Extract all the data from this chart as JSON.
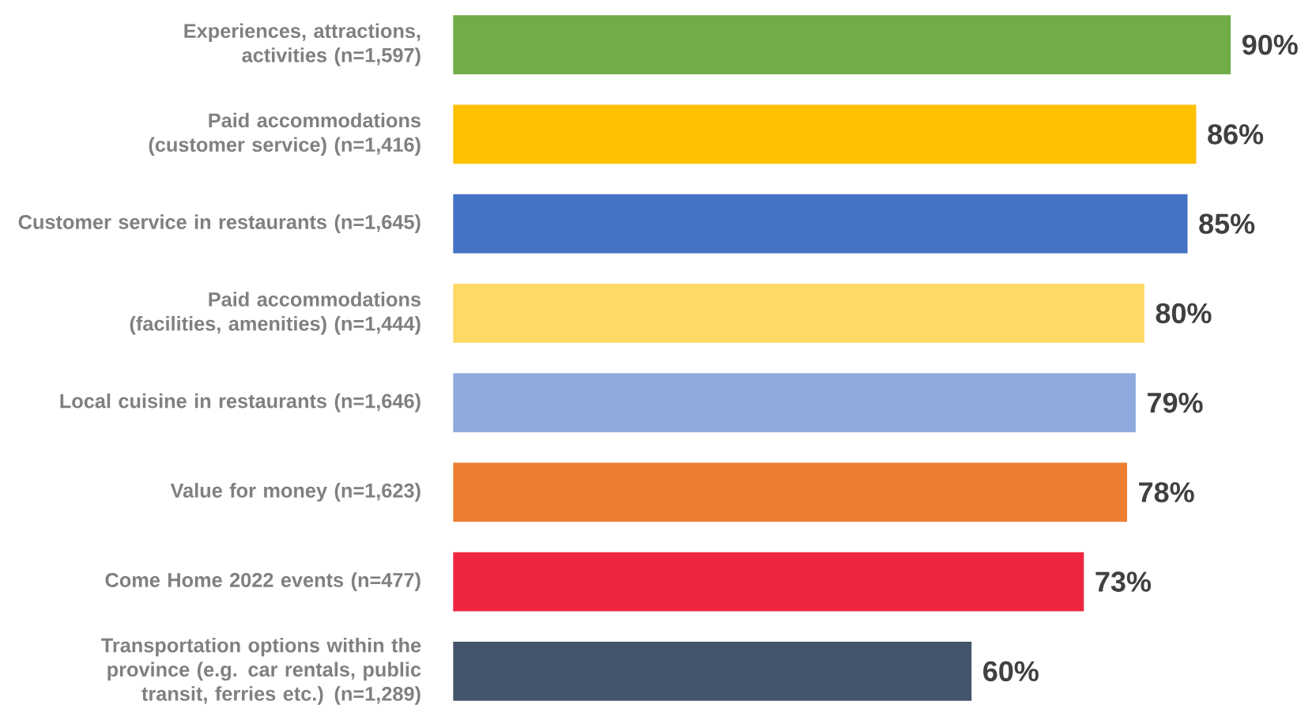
{
  "chart_data": {
    "type": "bar",
    "orientation": "horizontal",
    "categories": [
      "Experiences, attractions, activities (n=1,597)",
      "Paid accommodations (customer service) (n=1,416)",
      "Customer service in restaurants (n=1,645)",
      "Paid accommodations (facilities, amenities) (n=1,444)",
      "Local cuisine in restaurants (n=1,646)",
      "Value for money (n=1,623)",
      "Come Home 2022 events (n=477)",
      "Transportation options within the province (e.g. car rentals, public transit, ferries etc.) (n=1,289)"
    ],
    "values": [
      90,
      86,
      85,
      80,
      79,
      78,
      73,
      60
    ],
    "value_labels": [
      "90%",
      "86%",
      "85%",
      "80%",
      "79%",
      "78%",
      "73%",
      "60%"
    ],
    "colors": [
      "#70ad47",
      "#ffc000",
      "#4472c4",
      "#ffd966",
      "#8faadc",
      "#ed7d31",
      "#ee2640",
      "#44546a"
    ],
    "tick_labels": "y"
  }
}
